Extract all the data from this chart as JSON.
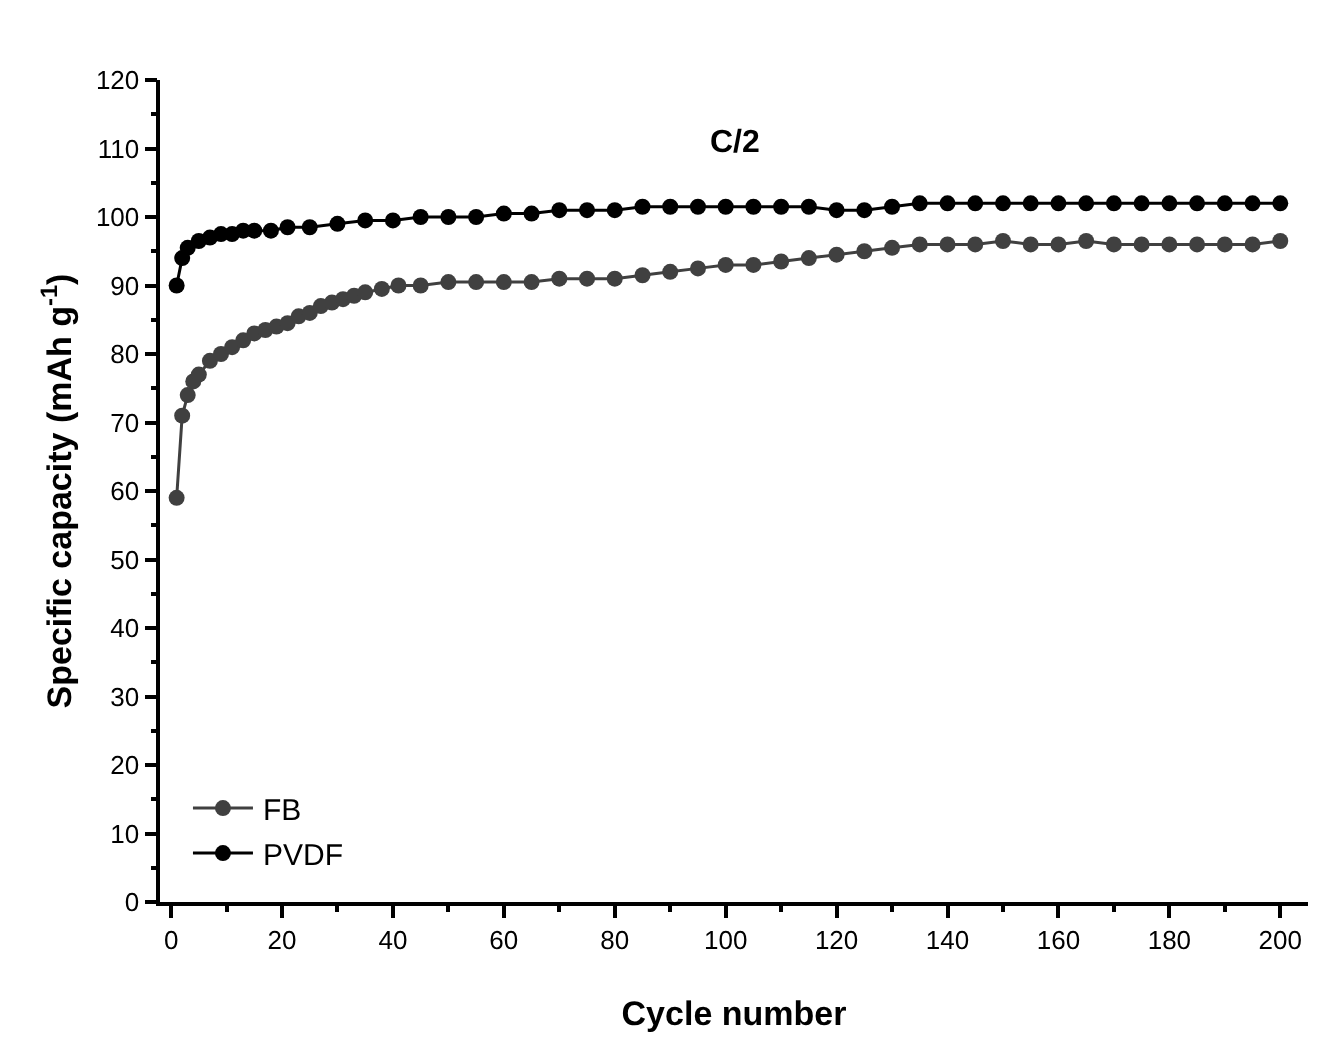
{
  "chart_data": {
    "type": "line",
    "xlabel": "Cycle number",
    "ylabel": "Specific capacity (mAh g$^{-1}$)",
    "annotations": [
      "C/2"
    ],
    "xlim": [
      -2,
      205
    ],
    "ylim": [
      0,
      120
    ],
    "xticks": [
      0,
      20,
      40,
      60,
      80,
      100,
      120,
      140,
      160,
      180,
      200
    ],
    "yticks": [
      0,
      10,
      20,
      30,
      40,
      50,
      60,
      70,
      80,
      90,
      100,
      110,
      120
    ],
    "grid": false,
    "legend": "bottom left",
    "marker": "circle",
    "line_style": "solid",
    "series": [
      {
        "name": "FB",
        "color": "#404040",
        "x": [
          1,
          2,
          3,
          4,
          5,
          7,
          9,
          11,
          13,
          15,
          17,
          19,
          21,
          23,
          25,
          27,
          29,
          31,
          33,
          35,
          38,
          41,
          45,
          50,
          55,
          60,
          65,
          70,
          75,
          80,
          85,
          90,
          95,
          100,
          105,
          110,
          115,
          120,
          125,
          130,
          135,
          140,
          145,
          150,
          155,
          160,
          165,
          170,
          175,
          180,
          185,
          190,
          195,
          200
        ],
        "values": [
          59,
          71,
          74,
          76,
          77,
          79,
          80,
          81,
          82,
          83,
          83.5,
          84,
          84.5,
          85.5,
          86,
          87,
          87.5,
          88,
          88.5,
          89,
          89.5,
          90,
          90,
          90.5,
          90.5,
          90.5,
          90.5,
          91,
          91,
          91,
          91.5,
          92,
          92.5,
          93,
          93,
          93.5,
          94,
          94.5,
          95,
          95.5,
          96,
          96,
          96,
          96.5,
          96,
          96,
          96.5,
          96,
          96,
          96,
          96,
          96,
          96,
          96.5
        ]
      },
      {
        "name": "PVDF",
        "color": "#000000",
        "x": [
          1,
          2,
          3,
          5,
          7,
          9,
          11,
          13,
          15,
          18,
          21,
          25,
          30,
          35,
          40,
          45,
          50,
          55,
          60,
          65,
          70,
          75,
          80,
          85,
          90,
          95,
          100,
          105,
          110,
          115,
          120,
          125,
          130,
          135,
          140,
          145,
          150,
          155,
          160,
          165,
          170,
          175,
          180,
          185,
          190,
          195,
          200
        ],
        "values": [
          90,
          94,
          95.5,
          96.5,
          97,
          97.5,
          97.5,
          98,
          98,
          98,
          98.5,
          98.5,
          99,
          99.5,
          99.5,
          100,
          100,
          100,
          100.5,
          100.5,
          101,
          101,
          101,
          101.5,
          101.5,
          101.5,
          101.5,
          101.5,
          101.5,
          101.5,
          101,
          101,
          101.5,
          102,
          102,
          102,
          102,
          102,
          102,
          102,
          102,
          102,
          102,
          102,
          102,
          102,
          102
        ]
      }
    ]
  }
}
